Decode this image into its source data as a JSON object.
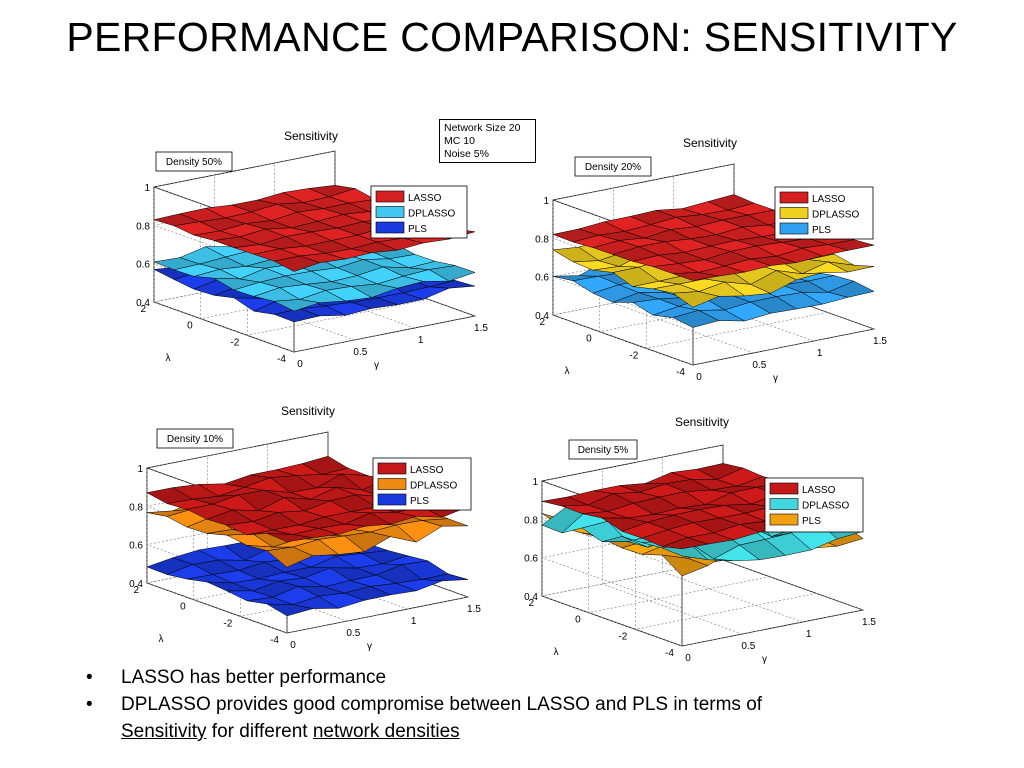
{
  "slide": {
    "title": "PERFORMANCE COMPARISON: SENSITIVITY",
    "info_box": [
      "Network Size 20",
      "MC 10",
      "Noise 5%"
    ],
    "bullets": [
      {
        "text": "LASSO has better performance"
      },
      {
        "line1": "DPLASSO provides good compromise between LASSO and PLS in terms of",
        "link1": "Sensitivity",
        "mid": " for different ",
        "link2": "network densities"
      }
    ]
  },
  "chart_data": [
    {
      "type": "surface",
      "title": "Sensitivity",
      "annotation": "Density 50%",
      "xlabel": "γ",
      "ylabel": "λ",
      "zlabel": "",
      "xlim": [
        0,
        1.5
      ],
      "ylim": [
        -4,
        2
      ],
      "zlim": [
        0.4,
        1
      ],
      "x_ticks": [
        "0",
        "0.5",
        "1",
        "1.5"
      ],
      "y_ticks": [
        "-4",
        "-2",
        "0",
        "2"
      ],
      "z_ticks": [
        "0.4",
        "0.6",
        "0.8",
        "1"
      ],
      "legend": {
        "position": "top-right",
        "entries": [
          "LASSO",
          "DPLASSO",
          "PLS"
        ]
      },
      "series": [
        {
          "name": "LASSO",
          "color": "#d42020",
          "level": 0.83,
          "noise": 0.012
        },
        {
          "name": "DPLASSO",
          "color": "#40c8f0",
          "level": 0.62,
          "noise": 0.018
        },
        {
          "name": "PLS",
          "color": "#1a3ae0",
          "level": 0.555,
          "noise": 0.018
        }
      ]
    },
    {
      "type": "surface",
      "title": "Sensitivity",
      "annotation": "Density 20%",
      "xlabel": "γ",
      "ylabel": "λ",
      "zlabel": "",
      "xlim": [
        0,
        1.5
      ],
      "ylim": [
        -4,
        2
      ],
      "zlim": [
        0.4,
        1
      ],
      "x_ticks": [
        "0",
        "0.5",
        "1",
        "1.5"
      ],
      "y_ticks": [
        "-4",
        "-2",
        "0",
        "2"
      ],
      "z_ticks": [
        "0.4",
        "0.6",
        "0.8",
        "1"
      ],
      "legend": {
        "position": "top-right",
        "entries": [
          "LASSO",
          "DPLASSO",
          "PLS"
        ]
      },
      "series": [
        {
          "name": "LASSO",
          "color": "#d42020",
          "level": 0.83,
          "noise": 0.012
        },
        {
          "name": "DPLASSO",
          "color": "#f0d020",
          "level": 0.72,
          "noise": 0.03
        },
        {
          "name": "PLS",
          "color": "#30a0f0",
          "level": 0.6,
          "noise": 0.025
        }
      ]
    },
    {
      "type": "surface",
      "title": "Sensitivity",
      "annotation": "Density 10%",
      "xlabel": "γ",
      "ylabel": "λ",
      "zlabel": "",
      "xlim": [
        0,
        1.5
      ],
      "ylim": [
        -4,
        2
      ],
      "zlim": [
        0.4,
        1
      ],
      "x_ticks": [
        "0",
        "0.5",
        "1",
        "1.5"
      ],
      "y_ticks": [
        "-4",
        "-2",
        "0",
        "2"
      ],
      "z_ticks": [
        "0.4",
        "0.6",
        "0.8",
        "1"
      ],
      "legend": {
        "position": "top-right",
        "entries": [
          "LASSO",
          "DPLASSO",
          "PLS"
        ]
      },
      "series": [
        {
          "name": "LASSO",
          "color": "#c41818",
          "level": 0.86,
          "noise": 0.025
        },
        {
          "name": "DPLASSO",
          "color": "#f08a10",
          "level": 0.77,
          "noise": 0.03
        },
        {
          "name": "PLS",
          "color": "#1a3ae0",
          "level": 0.5,
          "noise": 0.025
        }
      ]
    },
    {
      "type": "surface",
      "title": "Sensitivity",
      "annotation": "Density 5%",
      "xlabel": "γ",
      "ylabel": "λ",
      "zlabel": "",
      "xlim": [
        0,
        1.5
      ],
      "ylim": [
        -4,
        2
      ],
      "zlim": [
        0.4,
        1
      ],
      "x_ticks": [
        "0",
        "0.5",
        "1",
        "1.5"
      ],
      "y_ticks": [
        "-4",
        "-2",
        "0",
        "2"
      ],
      "z_ticks": [
        "0.4",
        "0.6",
        "0.8",
        "1"
      ],
      "legend": {
        "position": "top-right",
        "entries": [
          "LASSO",
          "DPLASSO",
          "PLS"
        ]
      },
      "series": [
        {
          "name": "LASSO",
          "color": "#c41818",
          "level": 0.9,
          "noise": 0.02
        },
        {
          "name": "DPLASSO",
          "color": "#40d8e0",
          "level": 0.82,
          "noise": 0.06
        },
        {
          "name": "PLS",
          "color": "#f0a010",
          "level": 0.8,
          "noise": 0.05
        }
      ]
    }
  ]
}
